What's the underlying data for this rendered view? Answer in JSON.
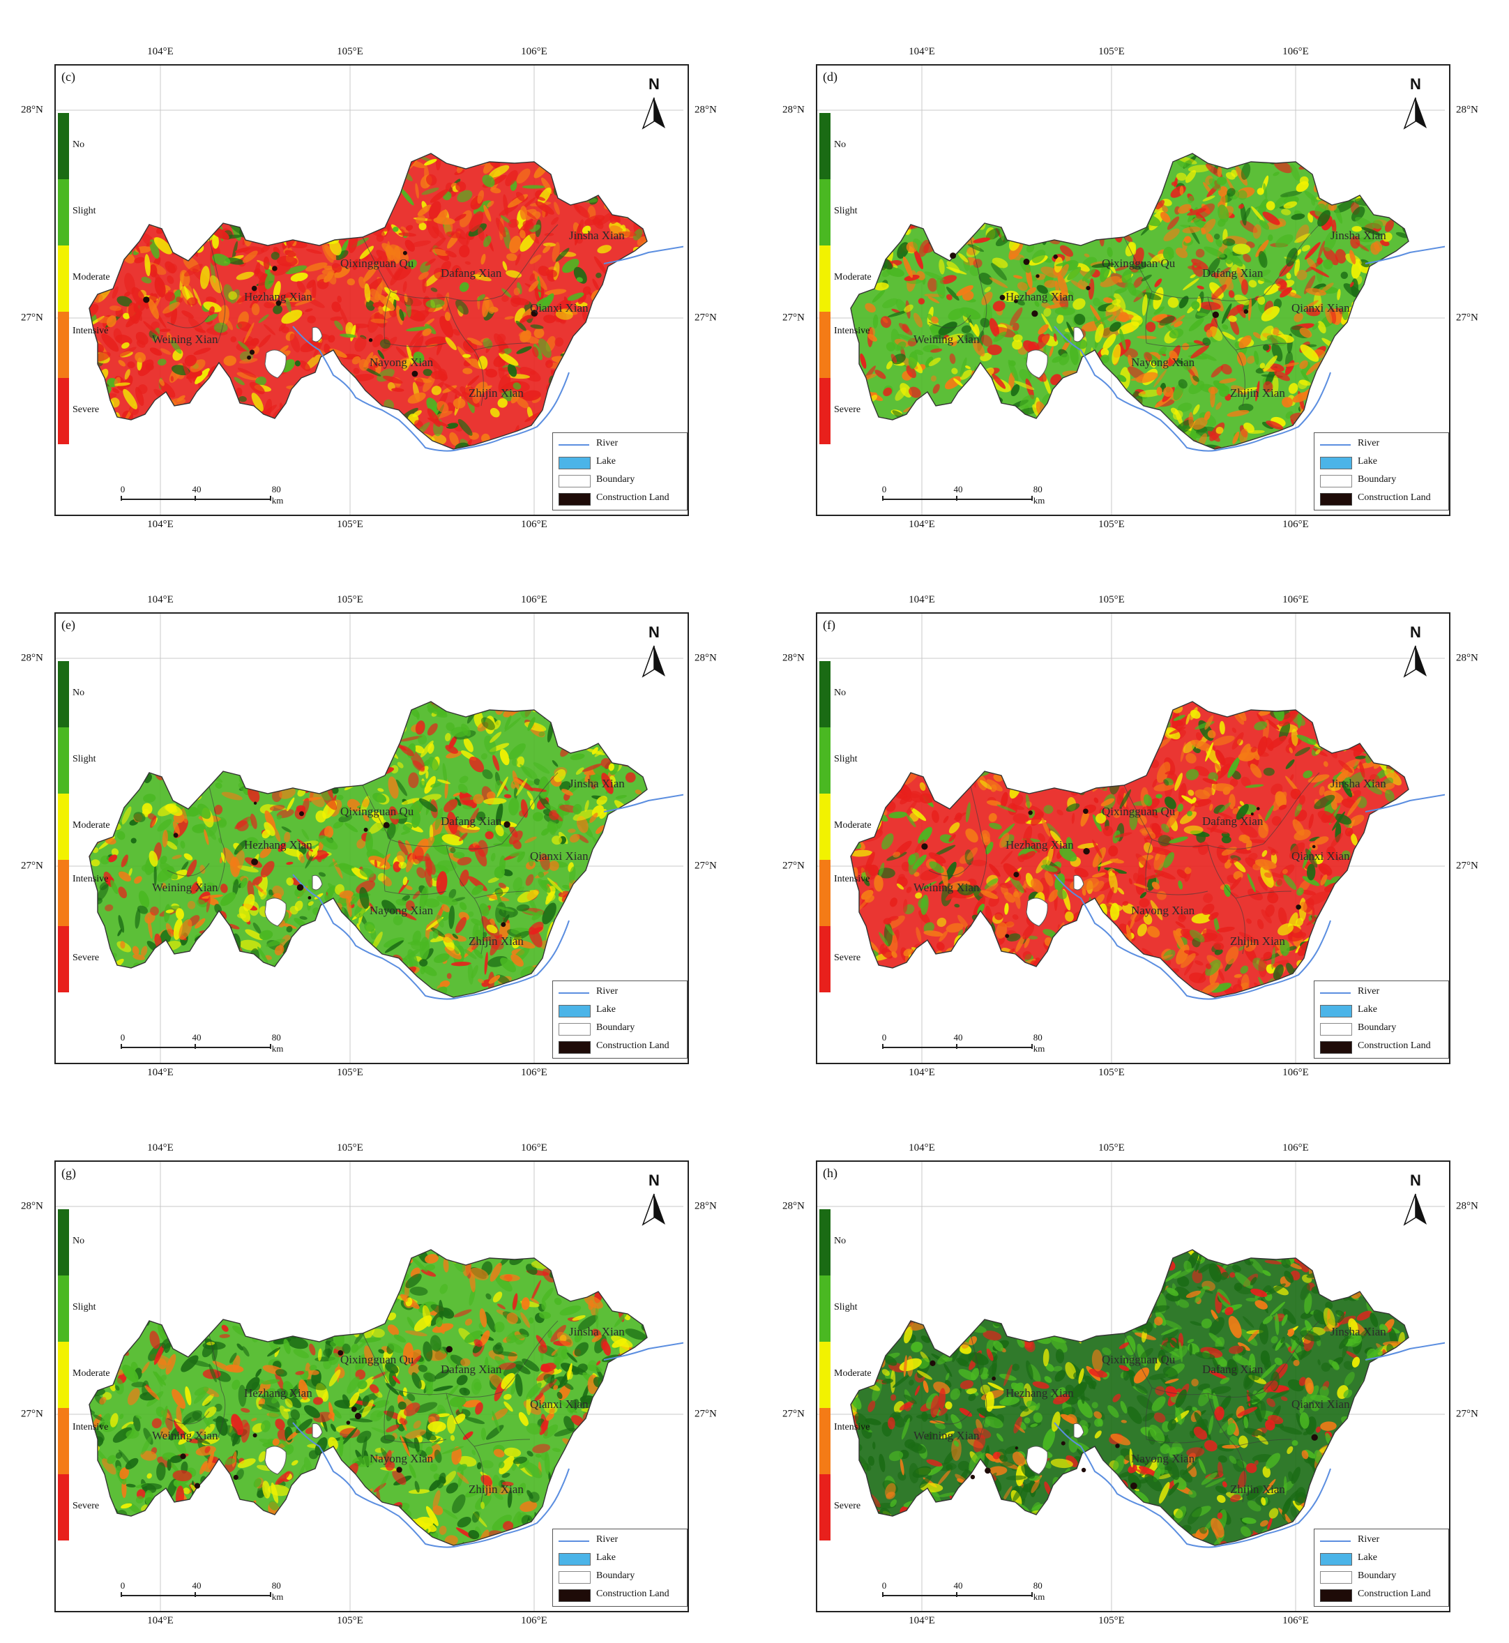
{
  "lon_ticks": [
    "104°E",
    "105°E",
    "106°E"
  ],
  "lat_ticks": [
    "28°N",
    "27°N"
  ],
  "north_label": "N",
  "categories": [
    {
      "label": "No",
      "color": "#1a6b14"
    },
    {
      "label": "Slight",
      "color": "#4ab822"
    },
    {
      "label": "Moderate",
      "color": "#f2f200"
    },
    {
      "label": "Intensive",
      "color": "#f47b16"
    },
    {
      "label": "Severe",
      "color": "#e8201c"
    }
  ],
  "counties": [
    "Jinsha Xian",
    "Qixingguan Qu",
    "Dafang Xian",
    "Hezhang Xian",
    "Qianxi Xian",
    "Weining Xian",
    "Nayong Xian",
    "Zhijin Xian"
  ],
  "legend": {
    "river": "River",
    "lake": "Lake",
    "boundary": "Boundary",
    "construction": "Construction Land",
    "river_color": "#5b8ee0",
    "lake_color": "#4bb4e8",
    "construction_color": "#1e0b08"
  },
  "scale_bar": {
    "labels": [
      "0",
      "40",
      "80 km"
    ]
  },
  "panels": [
    {
      "label": "(c)",
      "mix": {
        "severe": 0.45,
        "intensive": 0.25,
        "moderate": 0.12,
        "slight": 0.12,
        "no": 0.06
      }
    },
    {
      "label": "(d)",
      "mix": {
        "severe": 0.22,
        "intensive": 0.22,
        "moderate": 0.2,
        "slight": 0.26,
        "no": 0.1
      }
    },
    {
      "label": "(e)",
      "mix": {
        "severe": 0.18,
        "intensive": 0.2,
        "moderate": 0.2,
        "slight": 0.3,
        "no": 0.12
      }
    },
    {
      "label": "(f)",
      "mix": {
        "severe": 0.38,
        "intensive": 0.24,
        "moderate": 0.12,
        "slight": 0.16,
        "no": 0.1
      }
    },
    {
      "label": "(g)",
      "mix": {
        "severe": 0.12,
        "intensive": 0.16,
        "moderate": 0.14,
        "slight": 0.3,
        "no": 0.28
      }
    },
    {
      "label": "(h)",
      "mix": {
        "severe": 0.14,
        "intensive": 0.12,
        "moderate": 0.1,
        "slight": 0.3,
        "no": 0.34
      }
    }
  ]
}
